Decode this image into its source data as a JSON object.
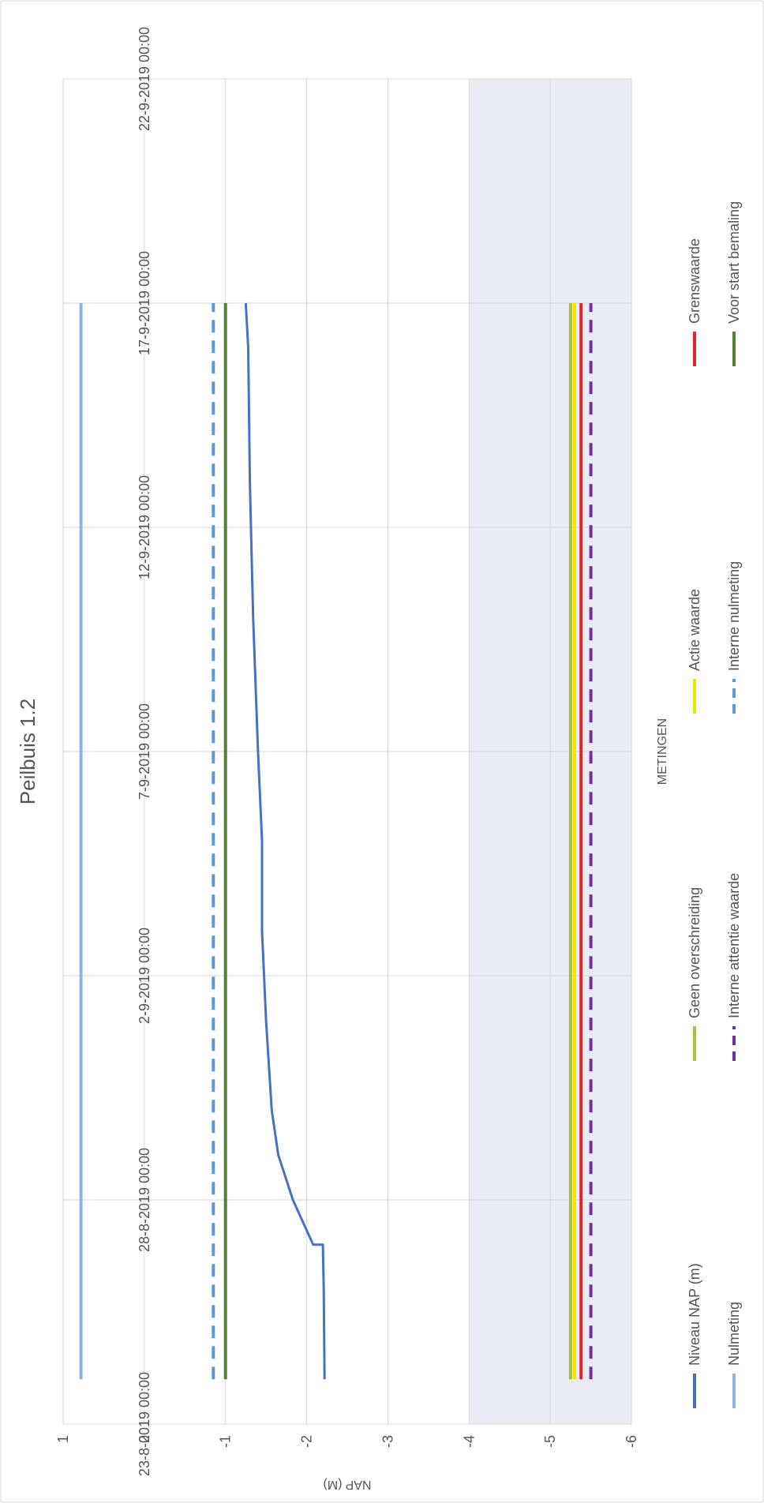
{
  "chart_data": {
    "type": "line",
    "title": "Peilbuis 1.2",
    "xlabel": "METINGEN",
    "ylabel": "NAP (M)",
    "x_ticks": [
      "23-8-2019 00:00",
      "28-8-2019 00:00",
      "2-9-2019 00:00",
      "7-9-2019 00:00",
      "12-9-2019 00:00",
      "17-9-2019 00:00",
      "22-9-2019 00:00"
    ],
    "xlim": [
      "23-8-2019",
      "22-9-2019"
    ],
    "y_ticks": [
      1,
      0,
      -1,
      -2,
      -3,
      -4,
      -5,
      -6
    ],
    "ylim": [
      -6,
      1
    ],
    "grid": true,
    "legend_position": "bottom",
    "shaded_band": {
      "from": -6,
      "to": -4,
      "color": "#E9ECF5"
    },
    "series": [
      {
        "name": "Niveau NAP (m)",
        "color": "#4472C4",
        "style": "solid",
        "points": [
          [
            "24-8-2019",
            -2.22
          ],
          [
            "26-8-2019",
            -2.21
          ],
          [
            "27-8-2019",
            -2.2
          ],
          [
            "27-8-2019",
            -2.08
          ],
          [
            "28-8-2019",
            -1.83
          ],
          [
            "29-8-2019",
            -1.65
          ],
          [
            "30-8-2019",
            -1.57
          ],
          [
            "1-9-2019",
            -1.5
          ],
          [
            "3-9-2019",
            -1.45
          ],
          [
            "5-9-2019",
            -1.45
          ],
          [
            "7-9-2019",
            -1.4
          ],
          [
            "10-9-2019",
            -1.34
          ],
          [
            "13-9-2019",
            -1.3
          ],
          [
            "16-9-2019",
            -1.28
          ],
          [
            "17-9-2019",
            -1.25
          ]
        ]
      },
      {
        "name": "Nulmeting",
        "color": "#8FB4E3",
        "style": "solid",
        "points": [
          [
            "24-8-2019",
            0.78
          ],
          [
            "17-9-2019",
            0.78
          ]
        ]
      },
      {
        "name": "Geen overschreiding",
        "color": "#A9C23A",
        "style": "solid",
        "points": [
          [
            "24-8-2019",
            -5.25
          ],
          [
            "17-9-2019",
            -5.25
          ]
        ]
      },
      {
        "name": "Actie waarde",
        "color": "#F2E600",
        "style": "solid",
        "points": [
          [
            "24-8-2019",
            -5.3
          ],
          [
            "17-9-2019",
            -5.3
          ]
        ]
      },
      {
        "name": "Grenswaarde",
        "color": "#E0262B",
        "style": "solid",
        "points": [
          [
            "24-8-2019",
            -5.38
          ],
          [
            "17-9-2019",
            -5.38
          ]
        ]
      },
      {
        "name": "Interne attentie waarde",
        "color": "#7030A0",
        "style": "dashed",
        "points": [
          [
            "24-8-2019",
            -5.5
          ],
          [
            "17-9-2019",
            -5.5
          ]
        ]
      },
      {
        "name": "Interne nulmeting",
        "color": "#5B9BD5",
        "style": "dashed",
        "points": [
          [
            "24-8-2019",
            -0.85
          ],
          [
            "17-9-2019",
            -0.85
          ]
        ]
      },
      {
        "name": "Voor start bemaling",
        "color": "#548235",
        "style": "solid",
        "points": [
          [
            "24-8-2019",
            -1.0
          ],
          [
            "17-9-2019",
            -1.0
          ]
        ]
      }
    ],
    "legend": [
      {
        "name": "Niveau NAP (m)",
        "color": "#4472C4",
        "style": "solid"
      },
      {
        "name": "Geen overschreiding",
        "color": "#A9C23A",
        "style": "solid"
      },
      {
        "name": "Actie waarde",
        "color": "#F2E600",
        "style": "solid"
      },
      {
        "name": "Grenswaarde",
        "color": "#E0262B",
        "style": "solid"
      },
      {
        "name": "Nulmeting",
        "color": "#8FB4E3",
        "style": "solid"
      },
      {
        "name": "Interne attentie waarde",
        "color": "#7030A0",
        "style": "dashed"
      },
      {
        "name": "Interne nulmeting",
        "color": "#5B9BD5",
        "style": "dashed"
      },
      {
        "name": "Voor start bemaling",
        "color": "#548235",
        "style": "solid"
      }
    ]
  }
}
